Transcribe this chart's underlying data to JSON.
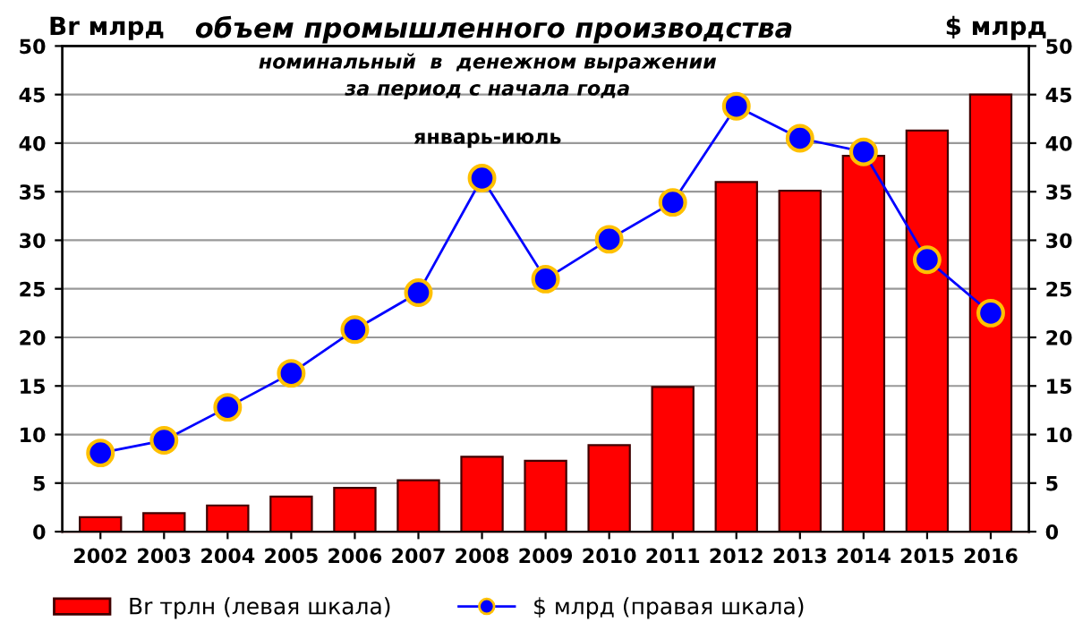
{
  "chart_data": {
    "type": "bar",
    "title": "объем промышленного производства",
    "subtitle": "номинальный  в  денежном выражении\nза период с начала года",
    "annotations": [
      "январь-июль"
    ],
    "ylabel": "Br млрд",
    "y2label": "$ млрд",
    "categories": [
      "2002",
      "2003",
      "2004",
      "2005",
      "2006",
      "2007",
      "2008",
      "2009",
      "2010",
      "2011",
      "2012",
      "2013",
      "2014",
      "2015",
      "2016"
    ],
    "series": [
      {
        "name": "Br трлн (левая шкала)",
        "color": "#ff0000",
        "values": [
          1.5,
          1.9,
          2.7,
          3.6,
          4.5,
          5.3,
          7.7,
          7.3,
          8.9,
          14.9,
          36.0,
          35.1,
          38.7,
          41.3,
          45.0
        ]
      },
      {
        "name": "$ млрд (правая шкала)",
        "type": "line",
        "axis": "y2",
        "color": "#0000ff",
        "marker": "circle",
        "values": [
          8.1,
          9.4,
          12.8,
          16.3,
          20.8,
          24.6,
          36.4,
          26.0,
          30.1,
          33.9,
          43.8,
          40.5,
          39.1,
          28.0,
          22.5
        ]
      }
    ],
    "ylim": [
      0,
      50
    ],
    "yticks": [
      0,
      5,
      10,
      15,
      20,
      25,
      30,
      35,
      40,
      45,
      50
    ],
    "y2lim": [
      0,
      50
    ],
    "y2ticks": [
      0,
      5,
      10,
      15,
      20,
      25,
      30,
      35,
      40,
      45,
      50
    ],
    "grid": "y",
    "legend": "bottom"
  }
}
